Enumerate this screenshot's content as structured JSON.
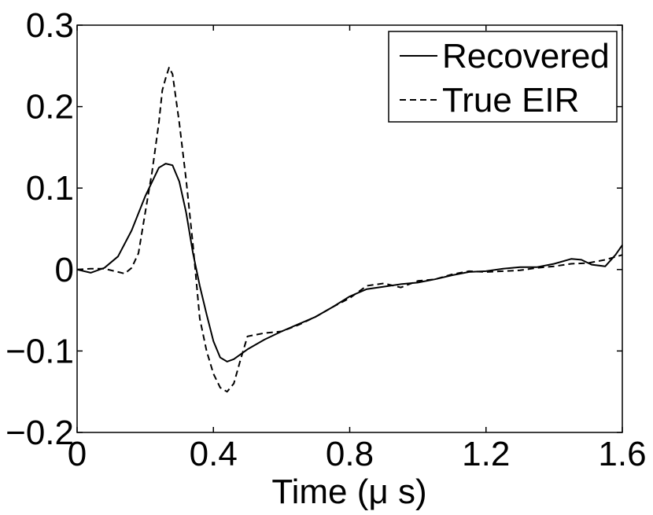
{
  "chart_data": {
    "type": "line",
    "title": "",
    "xlabel": "Time (μ s)",
    "ylabel": "",
    "xlim": [
      0,
      1.6
    ],
    "ylim": [
      -0.2,
      0.3
    ],
    "xticks": [
      0,
      0.4,
      0.8,
      1.2,
      1.6
    ],
    "xtick_labels": [
      "0",
      "0.4",
      "0.8",
      "1.2",
      "1.6"
    ],
    "yticks": [
      -0.2,
      -0.1,
      0,
      0.1,
      0.2,
      0.3
    ],
    "ytick_labels": [
      "−0.2",
      "−0.1",
      "0",
      "0.1",
      "0.2",
      "0.3"
    ],
    "grid": false,
    "legend_position": "top-right",
    "series": [
      {
        "name": "Recovered",
        "style": "solid",
        "color": "#000000",
        "x": [
          0,
          0.04,
          0.08,
          0.12,
          0.16,
          0.2,
          0.24,
          0.26,
          0.28,
          0.3,
          0.32,
          0.34,
          0.36,
          0.38,
          0.4,
          0.42,
          0.44,
          0.46,
          0.5,
          0.55,
          0.6,
          0.65,
          0.7,
          0.75,
          0.8,
          0.85,
          0.9,
          0.95,
          1.0,
          1.05,
          1.1,
          1.15,
          1.2,
          1.25,
          1.3,
          1.35,
          1.4,
          1.45,
          1.48,
          1.51,
          1.55,
          1.58,
          1.6
        ],
        "y": [
          0,
          -0.004,
          0.002,
          0.016,
          0.048,
          0.09,
          0.125,
          0.13,
          0.128,
          0.108,
          0.07,
          0.02,
          -0.02,
          -0.055,
          -0.088,
          -0.108,
          -0.113,
          -0.11,
          -0.098,
          -0.086,
          -0.076,
          -0.067,
          -0.058,
          -0.046,
          -0.033,
          -0.024,
          -0.021,
          -0.018,
          -0.016,
          -0.012,
          -0.007,
          -0.003,
          -0.002,
          0.001,
          0.003,
          0.003,
          0.007,
          0.013,
          0.012,
          0.006,
          0.004,
          0.018,
          0.03
        ]
      },
      {
        "name": "True EIR",
        "style": "dashed",
        "color": "#000000",
        "x": [
          0,
          0.04,
          0.08,
          0.12,
          0.14,
          0.16,
          0.18,
          0.2,
          0.22,
          0.24,
          0.25,
          0.26,
          0.27,
          0.28,
          0.3,
          0.32,
          0.34,
          0.36,
          0.38,
          0.4,
          0.42,
          0.44,
          0.46,
          0.48,
          0.5,
          0.55,
          0.6,
          0.65,
          0.7,
          0.75,
          0.8,
          0.85,
          0.9,
          0.95,
          1.0,
          1.05,
          1.1,
          1.15,
          1.2,
          1.25,
          1.3,
          1.35,
          1.4,
          1.45,
          1.5,
          1.55,
          1.6
        ],
        "y": [
          0,
          0.001,
          0.001,
          -0.003,
          -0.005,
          0.002,
          0.02,
          0.07,
          0.12,
          0.18,
          0.22,
          0.235,
          0.248,
          0.24,
          0.18,
          0.11,
          0.03,
          -0.06,
          -0.1,
          -0.128,
          -0.145,
          -0.15,
          -0.14,
          -0.11,
          -0.082,
          -0.078,
          -0.076,
          -0.068,
          -0.058,
          -0.046,
          -0.035,
          -0.02,
          -0.017,
          -0.022,
          -0.014,
          -0.012,
          -0.006,
          -0.002,
          -0.003,
          -0.002,
          -0.001,
          0.002,
          0.004,
          0.007,
          0.008,
          0.012,
          0.018
        ]
      }
    ]
  }
}
